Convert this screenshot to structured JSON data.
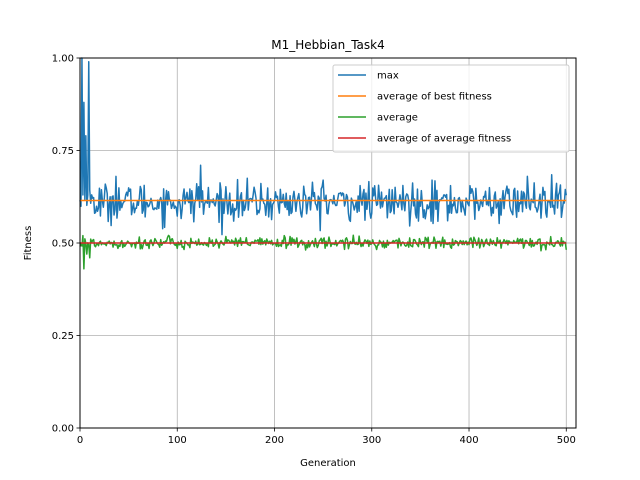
{
  "chart_data": {
    "type": "line",
    "title": "M1_Hebbian_Task4",
    "xlabel": "Generation",
    "ylabel": "Fitness",
    "xlim": [
      0,
      510
    ],
    "ylim": [
      0.0,
      1.0
    ],
    "grid": true,
    "legend_position": "upper-right",
    "x_ticks": [
      0,
      100,
      200,
      300,
      400,
      500
    ],
    "x_tick_labels": [
      "0",
      "100",
      "200",
      "300",
      "400",
      "500"
    ],
    "y_ticks": [
      0.0,
      0.25,
      0.5,
      0.75,
      1.0
    ],
    "y_tick_labels": [
      "0.00",
      "0.25",
      "0.50",
      "0.75",
      "1.00"
    ],
    "generations": [
      0,
      500
    ],
    "series": [
      {
        "name": "max",
        "color": "#1f77b4",
        "approx_mean": 0.61,
        "approx_spread": 0.025,
        "spikes": [
          {
            "x": 2,
            "y": 1.0
          },
          {
            "x": 4,
            "y": 0.88
          },
          {
            "x": 6,
            "y": 0.79
          },
          {
            "x": 9,
            "y": 0.99
          },
          {
            "x": 12,
            "y": 0.63
          },
          {
            "x": 37,
            "y": 0.68
          },
          {
            "x": 120,
            "y": 0.66
          },
          {
            "x": 124,
            "y": 0.71
          },
          {
            "x": 250,
            "y": 0.67
          },
          {
            "x": 362,
            "y": 0.67
          },
          {
            "x": 460,
            "y": 0.68
          },
          {
            "x": 378,
            "y": 0.56
          },
          {
            "x": 480,
            "y": 0.57
          }
        ]
      },
      {
        "name": "average of best fitness",
        "color": "#ff7f0e",
        "approx_mean": 0.615,
        "approx_spread": 0.0
      },
      {
        "name": "average",
        "color": "#2ca02c",
        "approx_mean": 0.5,
        "approx_spread": 0.008,
        "spikes": [
          {
            "x": 3,
            "y": 0.52
          },
          {
            "x": 4,
            "y": 0.43
          },
          {
            "x": 7,
            "y": 0.47
          },
          {
            "x": 10,
            "y": 0.46
          },
          {
            "x": 210,
            "y": 0.52
          },
          {
            "x": 250,
            "y": 0.51
          }
        ]
      },
      {
        "name": "average of average fitness",
        "color": "#d62728",
        "approx_mean": 0.5,
        "approx_spread": 0.0
      }
    ]
  }
}
